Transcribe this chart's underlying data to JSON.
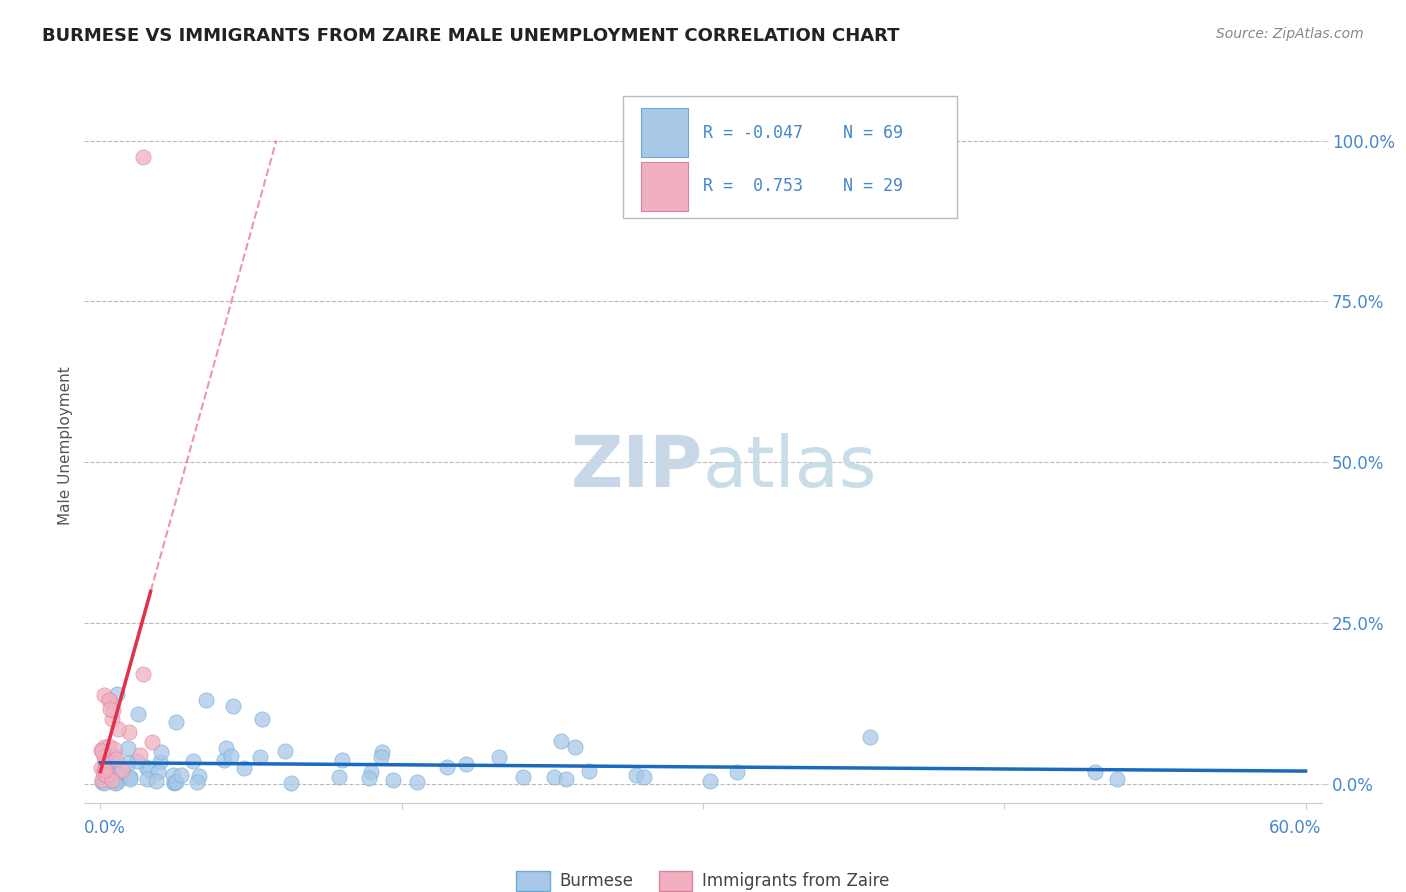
{
  "title": "BURMESE VS IMMIGRANTS FROM ZAIRE MALE UNEMPLOYMENT CORRELATION CHART",
  "source": "Source: ZipAtlas.com",
  "ylabel": "Male Unemployment",
  "ytick_values": [
    0.0,
    0.25,
    0.5,
    0.75,
    1.0
  ],
  "ytick_labels": [
    "0.0%",
    "25.0%",
    "50.0%",
    "75.0%",
    "100.0%"
  ],
  "xlim": [
    0.0,
    0.6
  ],
  "ylim": [
    0.0,
    1.08
  ],
  "blue_color": "#a8c8e8",
  "pink_color": "#f0b0c0",
  "blue_edge_color": "#6aaad4",
  "pink_edge_color": "#e080a0",
  "blue_line_color": "#1a6bbf",
  "pink_line_color": "#e0304a",
  "axis_label_color": "#4488cc",
  "background_color": "#ffffff",
  "grid_color": "#bbbbbb",
  "title_color": "#222222",
  "watermark_text": "ZIPatlas",
  "watermark_color": "#dde8f0",
  "source_color": "#888888",
  "legend_r_blue": "R = -0.047",
  "legend_n_blue": "N = 69",
  "legend_r_pink": "R =  0.753",
  "legend_n_pink": "N = 29"
}
